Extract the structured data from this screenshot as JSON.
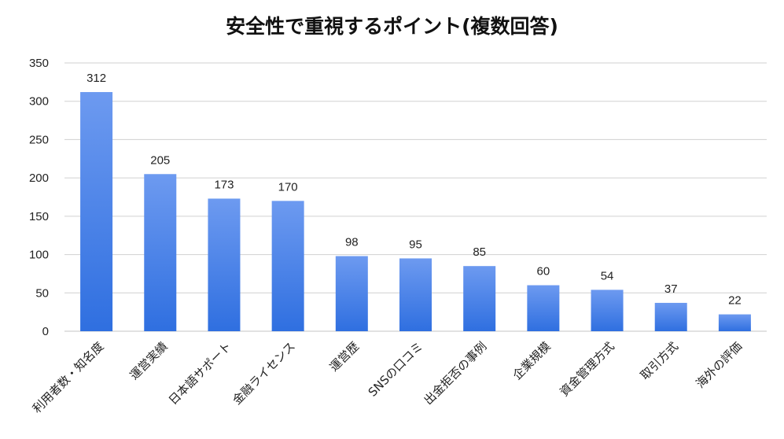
{
  "chart_data": {
    "type": "bar",
    "title": "安全性で重視するポイント(複数回答)",
    "xlabel": "",
    "ylabel": "",
    "ylim": [
      0,
      350
    ],
    "yticks": [
      0,
      50,
      100,
      150,
      200,
      250,
      300,
      350
    ],
    "grid": true,
    "categories": [
      "利用者数・知名度",
      "運営実績",
      "日本語サポート",
      "金融ライセンス",
      "運営歴",
      "SNSの口コミ",
      "出金拒否の事例",
      "企業規模",
      "資金管理方式",
      "取引方式",
      "海外の評価"
    ],
    "values": [
      312,
      205,
      173,
      170,
      98,
      95,
      85,
      60,
      54,
      37,
      22
    ],
    "colors": {
      "bar_top": "#6d9af0",
      "bar_bottom": "#2f6fe0",
      "grid": "#d0d0d0"
    }
  }
}
